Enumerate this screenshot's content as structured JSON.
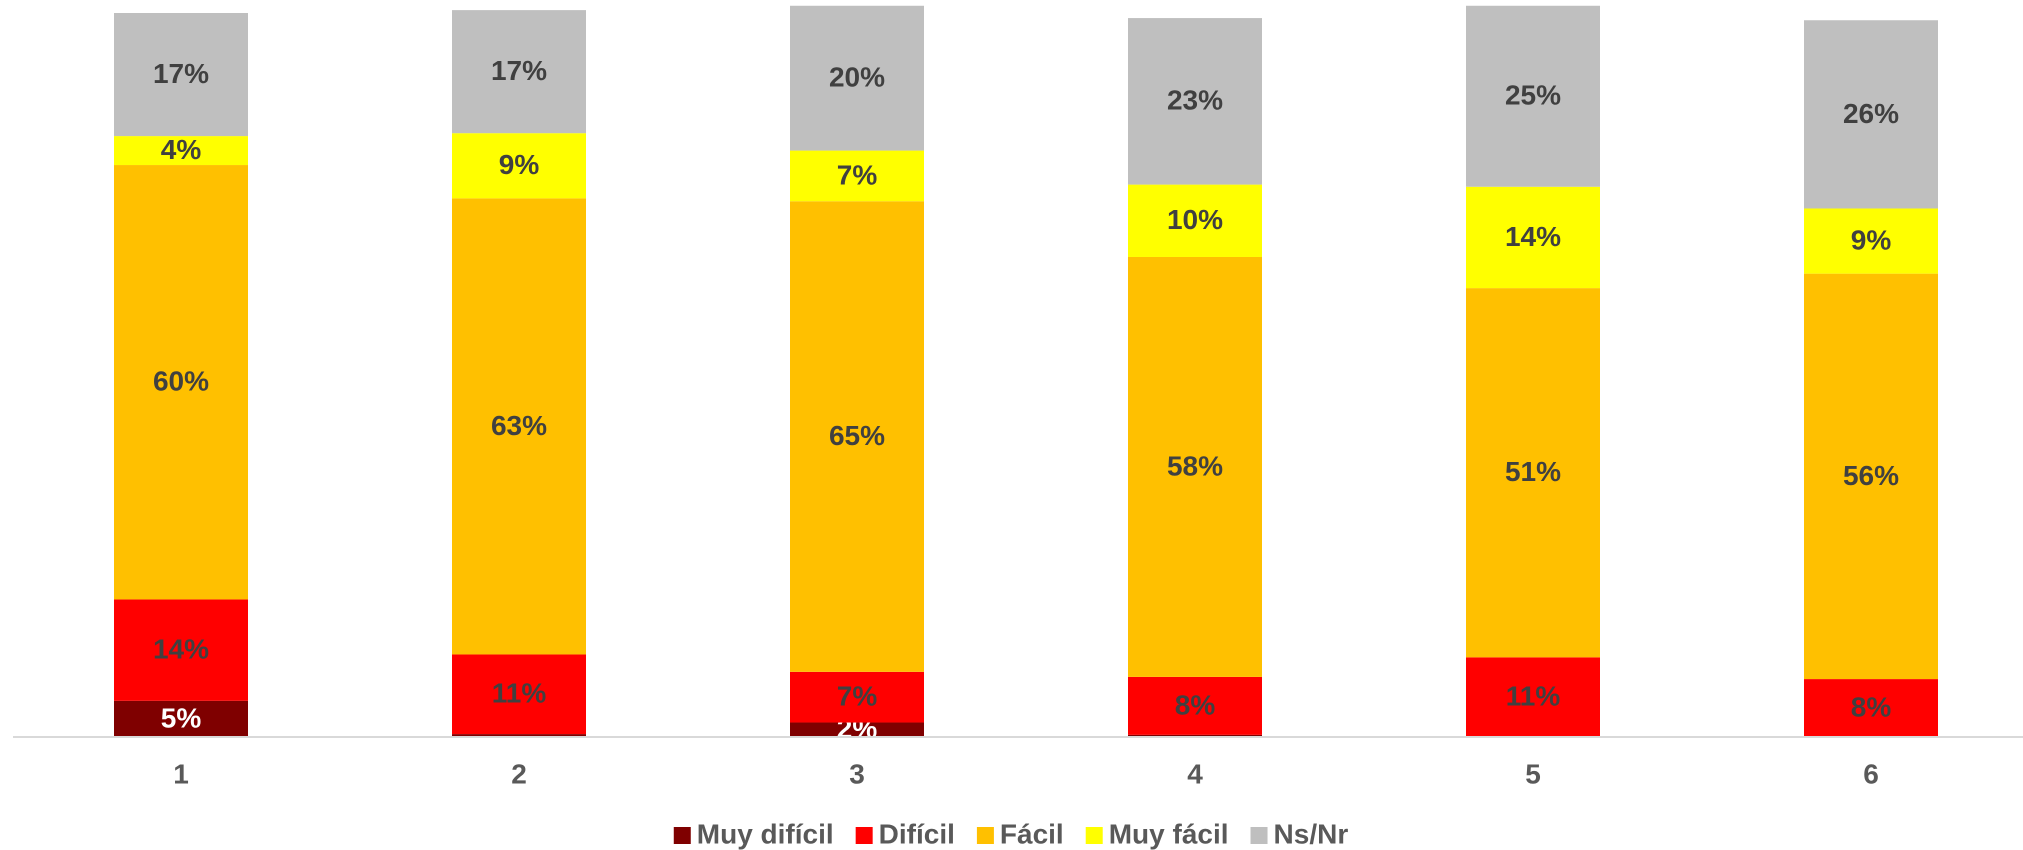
{
  "chart_data": {
    "type": "stacked_bar",
    "categories": [
      "1",
      "2",
      "3",
      "4",
      "5",
      "6"
    ],
    "ylim": [
      0,
      100
    ],
    "series": [
      {
        "name": "Muy difícil",
        "color": "#7f0000",
        "values": [
          5,
          0.4,
          2,
          0.3,
          0,
          0
        ],
        "value_labels": [
          "5%",
          null,
          "2%",
          null,
          null,
          null
        ]
      },
      {
        "name": "Difícil",
        "color": "#ff0000",
        "values": [
          14,
          11,
          7,
          8,
          11,
          8
        ],
        "value_labels": [
          "14%",
          "11%",
          "7%",
          "8%",
          "11%",
          "8%"
        ]
      },
      {
        "name": "Fácil",
        "color": "#ffc000",
        "values": [
          60,
          63,
          65,
          58,
          51,
          56
        ],
        "value_labels": [
          "60%",
          "63%",
          "65%",
          "58%",
          "51%",
          "56%"
        ]
      },
      {
        "name": "Muy fácil",
        "color": "#ffff00",
        "values": [
          4,
          9,
          7,
          10,
          14,
          9
        ],
        "value_labels": [
          "4%",
          "9%",
          "7%",
          "10%",
          "14%",
          "9%"
        ]
      },
      {
        "name": "Ns/Nr",
        "color": "#bfbfbf",
        "values": [
          17,
          17,
          20,
          23,
          25,
          26
        ],
        "value_labels": [
          "17%",
          "17%",
          "20%",
          "23%",
          "25%",
          "26%"
        ]
      }
    ]
  }
}
